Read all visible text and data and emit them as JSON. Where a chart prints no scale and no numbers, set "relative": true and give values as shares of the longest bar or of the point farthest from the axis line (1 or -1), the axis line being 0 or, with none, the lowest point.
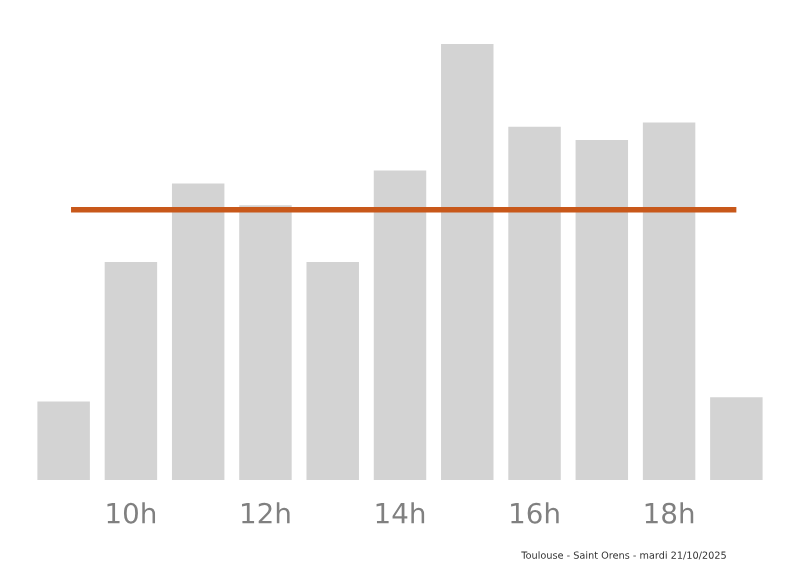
{
  "chart_data": {
    "type": "bar",
    "relative": true,
    "categories": [
      null,
      "10h",
      null,
      "12h",
      null,
      "14h",
      null,
      "16h",
      null,
      "18h",
      null
    ],
    "values": [
      0.18,
      0.5,
      0.68,
      0.63,
      0.5,
      0.71,
      1,
      0.81,
      0.78,
      0.82,
      0.19
    ],
    "color": "#d3d3d3",
    "ref_lines": [
      {
        "axis": "y",
        "value": 0.62,
        "color": "#c8581a"
      }
    ],
    "annotations": [
      "Toulouse - Saint Orens - mardi 21/10/2025"
    ],
    "grid": false
  }
}
